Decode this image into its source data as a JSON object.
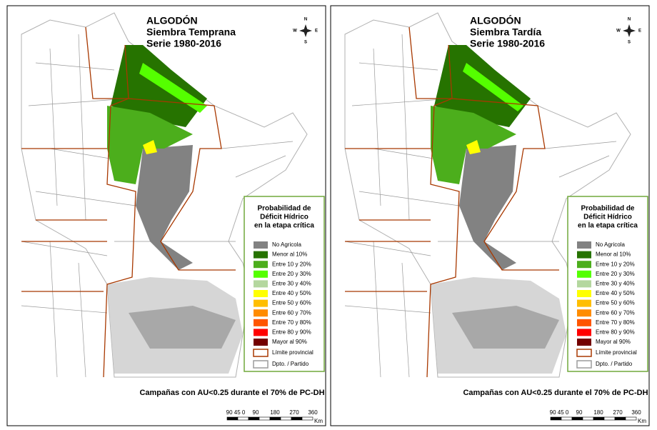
{
  "panels": [
    {
      "title": [
        "ALGODÓN",
        "Siembra Temprana",
        "Serie 1980-2016"
      ],
      "compass": [
        "N",
        "S",
        "E",
        "W"
      ],
      "legend": {
        "title": [
          "Probabilidad de",
          "Déficit Hídrico",
          "en la etapa crítica"
        ],
        "items": [
          {
            "label": "No Agricola",
            "color": "#828282"
          },
          {
            "label": "Menor al 10%",
            "color": "#267300"
          },
          {
            "label": "Entre 10 y 20%",
            "color": "#4cae1c"
          },
          {
            "label": "Entre 20 y 30%",
            "color": "#55ff00"
          },
          {
            "label": "Entre 30 y 40%",
            "color": "#b4d79e"
          },
          {
            "label": "Entre 40 y 50%",
            "color": "#ffff00"
          },
          {
            "label": "Entre 50 y 60%",
            "color": "#ffbe00"
          },
          {
            "label": "Entre 60 y 70%",
            "color": "#ff8c00"
          },
          {
            "label": "Entre 70 y 80%",
            "color": "#ff5500"
          },
          {
            "label": "Entre 80 y 90%",
            "color": "#ff0000"
          },
          {
            "label": "Mayor al 90%",
            "color": "#730000"
          },
          {
            "label": "Límite provincial",
            "border": "#a83800"
          },
          {
            "label": "Dpto. / Partido",
            "border": "#9c9c9c"
          }
        ]
      },
      "caption": "Campañas con AU<0.25 durante el 70% de PC-DH",
      "scale": {
        "labels": [
          "90 45 0",
          "90",
          "180",
          "270",
          "360"
        ],
        "unit": "Km"
      }
    },
    {
      "title": [
        "ALGODÓN",
        "Siembra Tardía",
        "Serie 1980-2016"
      ],
      "compass": [
        "N",
        "S",
        "E",
        "W"
      ],
      "legend": {
        "title": [
          "Probabilidad de",
          "Déficit Hídrico",
          "en la etapa crítica"
        ],
        "items": [
          {
            "label": "No Agricola",
            "color": "#828282"
          },
          {
            "label": "Menor al 10%",
            "color": "#267300"
          },
          {
            "label": "Entre 10 y 20%",
            "color": "#4cae1c"
          },
          {
            "label": "Entre 20 y 30%",
            "color": "#55ff00"
          },
          {
            "label": "Entre 30 y 40%",
            "color": "#b4d79e"
          },
          {
            "label": "Entre 40 y 50%",
            "color": "#ffff00"
          },
          {
            "label": "Entre 50 y 60%",
            "color": "#ffbe00"
          },
          {
            "label": "Entre 60 y 70%",
            "color": "#ff8c00"
          },
          {
            "label": "Entre 70 y 80%",
            "color": "#ff5500"
          },
          {
            "label": "Entre 80 y 90%",
            "color": "#ff0000"
          },
          {
            "label": "Mayor al 90%",
            "color": "#730000"
          },
          {
            "label": "Límite provincial",
            "border": "#a83800"
          },
          {
            "label": "Dpto. / Partido",
            "border": "#9c9c9c"
          }
        ]
      },
      "caption": "Campañas con AU<0.25 durante el 70% de PC-DH",
      "scale": {
        "labels": [
          "90 45 0",
          "90",
          "180",
          "270",
          "360"
        ],
        "unit": "Km"
      }
    }
  ]
}
